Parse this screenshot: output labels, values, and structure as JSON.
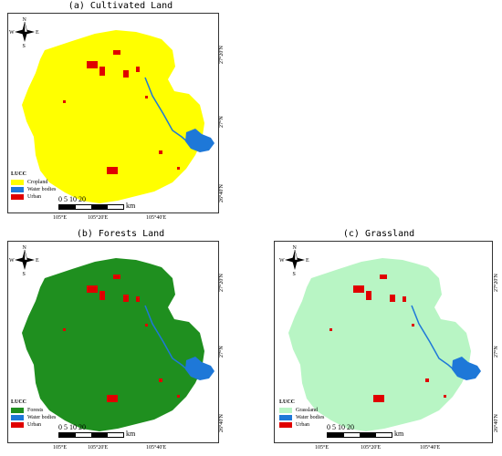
{
  "panels": [
    {
      "title": "(a)  Cultivated Land",
      "legend_header": "LUCC",
      "legend": [
        {
          "label": "Cropland",
          "color": "#ffff00"
        },
        {
          "label": "Water bodies",
          "color": "#1e78d8"
        },
        {
          "label": "Urban",
          "color": "#e00000"
        }
      ],
      "base_color": "#ffff00"
    },
    {
      "title": "(b)  Forests Land",
      "legend_header": "LUCC",
      "legend": [
        {
          "label": "Forests",
          "color": "#1f8f1f"
        },
        {
          "label": "Water bodies",
          "color": "#1e78d8"
        },
        {
          "label": "Urban",
          "color": "#e00000"
        }
      ],
      "base_color": "#1f8f1f"
    },
    {
      "title": "(c)  Grassland",
      "legend_header": "LUCC",
      "legend": [
        {
          "label": "Grassland",
          "color": "#b8f5c4"
        },
        {
          "label": "Water bodies",
          "color": "#1e78d8"
        },
        {
          "label": "Urban",
          "color": "#e00000"
        }
      ],
      "base_color": "#b8f5c4"
    }
  ],
  "compass": {
    "n": "N",
    "s": "S",
    "e": "E",
    "w": "W"
  },
  "scale_bar": {
    "numbers": "0  5 10    20",
    "unit": "km"
  },
  "x_ticks": [
    "105°E",
    "105°20'E",
    "105°40'E"
  ],
  "y_ticks": [
    "27°20'N",
    "27°N",
    "26°40'N"
  ]
}
